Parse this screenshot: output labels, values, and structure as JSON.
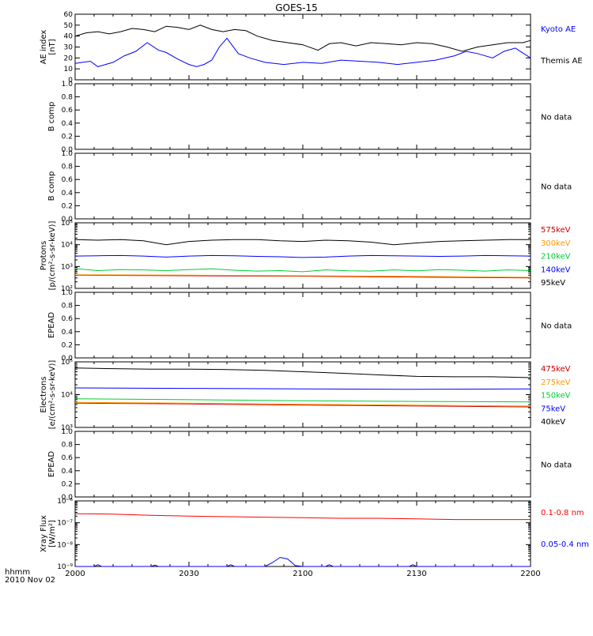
{
  "title": "GOES-15",
  "time_axis": {
    "ticks": [
      "2000",
      "2030",
      "2100",
      "2130",
      "2200"
    ],
    "corner_label": "hhmm",
    "date_label": "2010 Nov 02"
  },
  "chart_data": [
    {
      "type": "line",
      "id": "ae",
      "ylabel": [
        "AE index",
        "[nT]"
      ],
      "ylim": [
        0,
        60
      ],
      "ytick_labels": [
        "0",
        "10",
        "20",
        "30",
        "40",
        "50",
        "60"
      ],
      "x_minutes": [
        0,
        120
      ],
      "series": [
        {
          "name": "Kyoto AE",
          "color": "#0000ff",
          "x": [
            0,
            4,
            6,
            8,
            10,
            13,
            16,
            19,
            22,
            24,
            27,
            30,
            32,
            34,
            36,
            38,
            40,
            43,
            46,
            50,
            55,
            60,
            65,
            70,
            75,
            80,
            85,
            90,
            95,
            100,
            103,
            106,
            110,
            113,
            116,
            120
          ],
          "y": [
            15,
            17,
            12,
            14,
            16,
            22,
            26,
            34,
            27,
            25,
            19,
            14,
            12,
            14,
            18,
            30,
            38,
            24,
            20,
            16,
            14,
            16,
            15,
            18,
            17,
            16,
            14,
            16,
            18,
            22,
            26,
            24,
            20,
            26,
            29,
            20
          ]
        },
        {
          "name": "Themis AE",
          "color": "#000000",
          "x": [
            0,
            3,
            6,
            9,
            12,
            15,
            18,
            21,
            24,
            27,
            30,
            33,
            36,
            39,
            42,
            45,
            48,
            52,
            56,
            60,
            64,
            67,
            70,
            74,
            78,
            82,
            86,
            90,
            94,
            98,
            102,
            106,
            110,
            114,
            118,
            120
          ],
          "y": [
            40,
            43,
            44,
            42,
            44,
            47,
            46,
            44,
            49,
            48,
            46,
            50,
            46,
            44,
            46,
            45,
            40,
            36,
            34,
            32,
            27,
            33,
            34,
            31,
            34,
            33,
            32,
            34,
            33,
            30,
            26,
            30,
            32,
            34,
            34,
            36
          ]
        }
      ]
    },
    {
      "type": "line",
      "id": "bcomp1",
      "ylabel": [
        "B comp"
      ],
      "ylim": [
        0,
        1
      ],
      "ytick_labels": [
        "0.0",
        "0.2",
        "0.4",
        "0.6",
        "0.8",
        "1.0"
      ],
      "status": "No data"
    },
    {
      "type": "line",
      "id": "bcomp2",
      "ylabel": [
        "B comp"
      ],
      "ylim": [
        0,
        1
      ],
      "ytick_labels": [
        "0.0",
        "0.2",
        "0.4",
        "0.6",
        "0.8",
        "1.0"
      ],
      "status": "No data"
    },
    {
      "type": "line",
      "id": "protons",
      "ylabel": [
        "Protons",
        "[p/(cm²-s-sr-keV)]"
      ],
      "ylim": [
        100,
        100000
      ],
      "log_scale": true,
      "ytick_labels": [
        "10²",
        "10³",
        "10⁴",
        "10⁵"
      ],
      "series": [
        {
          "name": "575keV",
          "color": "#cc0000",
          "x": [
            0,
            30,
            60,
            90,
            120
          ],
          "y": [
            400,
            380,
            360,
            330,
            300
          ]
        },
        {
          "name": "300keV",
          "color": "#ff9900",
          "x": [
            0,
            30,
            60,
            90,
            120
          ],
          "y": [
            420,
            400,
            380,
            350,
            320
          ]
        },
        {
          "name": "210keV",
          "color": "#00cc33",
          "x": [
            0,
            6,
            12,
            18,
            24,
            30,
            36,
            42,
            48,
            54,
            60,
            66,
            72,
            78,
            84,
            90,
            96,
            102,
            108,
            114,
            120
          ],
          "y": [
            800,
            650,
            720,
            700,
            650,
            720,
            780,
            680,
            620,
            650,
            580,
            700,
            640,
            620,
            700,
            640,
            720,
            680,
            620,
            700,
            650
          ]
        },
        {
          "name": "140keV",
          "color": "#0000ff",
          "x": [
            0,
            6,
            12,
            18,
            24,
            30,
            36,
            42,
            48,
            54,
            60,
            66,
            72,
            78,
            84,
            90,
            96,
            102,
            108,
            114,
            120
          ],
          "y": [
            3000,
            3100,
            3200,
            3000,
            2700,
            3000,
            3200,
            3100,
            2900,
            2800,
            2600,
            2700,
            3000,
            3200,
            3100,
            3000,
            2900,
            3000,
            3200,
            3100,
            3000
          ]
        },
        {
          "name": "95keV",
          "color": "#000000",
          "x": [
            0,
            6,
            12,
            18,
            24,
            30,
            36,
            42,
            48,
            54,
            60,
            66,
            72,
            78,
            84,
            90,
            96,
            102,
            108,
            114,
            120
          ],
          "y": [
            17000,
            16000,
            17000,
            15000,
            10000,
            14000,
            16000,
            17000,
            17000,
            15000,
            14000,
            16000,
            15000,
            13000,
            10000,
            12000,
            14000,
            15000,
            16000,
            17000,
            17000
          ]
        }
      ]
    },
    {
      "type": "line",
      "id": "epead1",
      "ylabel": [
        "EPEAD"
      ],
      "ylim": [
        0,
        1
      ],
      "ytick_labels": [
        "0.0",
        "0.2",
        "0.4",
        "0.6",
        "0.8",
        "1.0"
      ],
      "status": "No data"
    },
    {
      "type": "line",
      "id": "electrons",
      "ylabel": [
        "Electrons",
        "[e/(cm²-s-sr-keV)]"
      ],
      "ylim": [
        1000,
        100000
      ],
      "log_scale": true,
      "ytick_labels": [
        "10³",
        "10⁴",
        "10⁵"
      ],
      "series": [
        {
          "name": "475keV",
          "color": "#cc0000",
          "x": [
            0,
            30,
            60,
            90,
            120
          ],
          "y": [
            5500,
            5200,
            4800,
            4500,
            4200
          ]
        },
        {
          "name": "275keV",
          "color": "#ff9900",
          "x": [
            0,
            30,
            60,
            90,
            120
          ],
          "y": [
            5800,
            5500,
            5100,
            4800,
            4500
          ]
        },
        {
          "name": "150keV",
          "color": "#00cc33",
          "x": [
            0,
            30,
            60,
            90,
            120
          ],
          "y": [
            7500,
            7000,
            6500,
            6200,
            6000
          ]
        },
        {
          "name": "75keV",
          "color": "#0000ff",
          "x": [
            0,
            30,
            60,
            90,
            120
          ],
          "y": [
            16000,
            15500,
            15000,
            14500,
            15000
          ]
        },
        {
          "name": "40keV",
          "color": "#000000",
          "x": [
            0,
            10,
            20,
            30,
            40,
            50,
            60,
            70,
            80,
            90,
            100,
            110,
            120
          ],
          "y": [
            65000,
            62000,
            60000,
            60000,
            58000,
            55000,
            50000,
            45000,
            40000,
            36000,
            35000,
            35000,
            33000
          ]
        }
      ]
    },
    {
      "type": "line",
      "id": "epead2",
      "ylabel": [
        "EPEAD"
      ],
      "ylim": [
        0,
        1
      ],
      "ytick_labels": [
        "0.0",
        "0.2",
        "0.4",
        "0.6",
        "0.8",
        "1.0"
      ],
      "status": "No data"
    },
    {
      "type": "line",
      "id": "xray",
      "ylabel": [
        "Xray Flux",
        "[W/m²]"
      ],
      "ylim": [
        1e-09,
        1e-06
      ],
      "log_scale": true,
      "ytick_labels": [
        "10⁻⁹",
        "10⁻⁸",
        "10⁻⁷",
        "10⁻⁶"
      ],
      "series": [
        {
          "name": "0.1-0.8 nm",
          "color": "#ff0000",
          "x": [
            0,
            10,
            20,
            30,
            40,
            50,
            60,
            70,
            80,
            90,
            100,
            110,
            120
          ],
          "y": [
            2.6e-07,
            2.5e-07,
            2.2e-07,
            2e-07,
            1.9e-07,
            1.8e-07,
            1.7e-07,
            1.6e-07,
            1.6e-07,
            1.5e-07,
            1.4e-07,
            1.4e-07,
            1.4e-07
          ]
        },
        {
          "name": "0.05-0.4 nm",
          "color": "#0000ff",
          "x": [
            0,
            5,
            6,
            7,
            20,
            21,
            22,
            40,
            41,
            42,
            50,
            52,
            54,
            56,
            58,
            60,
            66,
            67,
            68,
            88,
            89,
            90,
            120
          ],
          "y": [
            1e-09,
            1e-09,
            1.2e-09,
            1e-09,
            1e-09,
            1.15e-09,
            1e-09,
            1e-09,
            1.2e-09,
            1e-09,
            1e-09,
            1.5e-09,
            2.6e-09,
            2.2e-09,
            1.1e-09,
            1e-09,
            1e-09,
            1.2e-09,
            1e-09,
            1e-09,
            1.2e-09,
            1e-09,
            1e-09
          ]
        }
      ]
    }
  ]
}
